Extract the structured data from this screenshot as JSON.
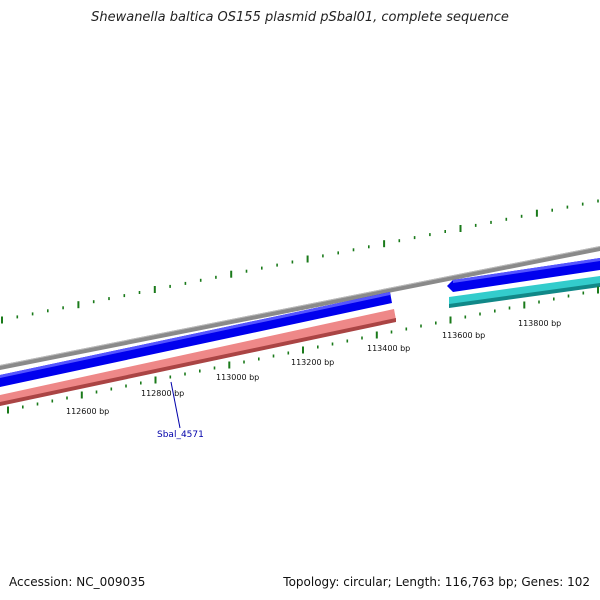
{
  "title": "Shewanella baltica OS155 plasmid pSbal01, complete sequence",
  "footer": {
    "accession": "Accession: NC_009035",
    "info": "Topology: circular; Length: 116,763 bp; Genes: 102"
  },
  "ticks": [
    {
      "label": "112600 bp"
    },
    {
      "label": "112800 bp"
    },
    {
      "label": "113000 bp"
    },
    {
      "label": "113200 bp"
    },
    {
      "label": "113400 bp"
    },
    {
      "label": "113600 bp"
    },
    {
      "label": "113800 bp"
    }
  ],
  "gene_label": "Sbal_4571",
  "colors": {
    "backbone": "#888888",
    "forward_gene": "#0000ee",
    "reverse_gene": "#ee8888",
    "reverse_gene_alt": "#33cccc",
    "ticks": "#1a7a1a",
    "gene_label": "#0000aa"
  }
}
